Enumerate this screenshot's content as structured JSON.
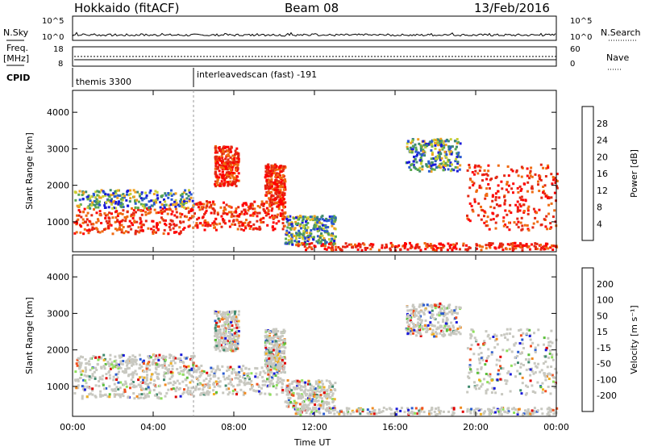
{
  "header": {
    "radar": "Hokkaido (fitACF)",
    "beam": "Beam 08",
    "date": "13/Feb/2016"
  },
  "status_panels": {
    "nsky_label": "N.Sky",
    "nsearch_label": "N.Search",
    "freq_label_1": "Freq.",
    "freq_label_2": "[MHz]",
    "nave_label": "Nave",
    "cpid_label": "CPID",
    "noise_ticks_left": [
      "10^5",
      "10^0"
    ],
    "noise_ticks_right": [
      "10^5",
      "10^0"
    ],
    "freq_ticks": [
      "18",
      "8"
    ],
    "nave_ticks": [
      "60",
      "0"
    ],
    "cpid_segments": [
      {
        "name": "themis 3300",
        "start_hour": 0,
        "end_hour": 6
      },
      {
        "name": "interleavedscan (fast) -191",
        "start_hour": 6,
        "end_hour": 24
      }
    ]
  },
  "chart_data": [
    {
      "type": "heatmap",
      "ylabel": "Slant Range [km]",
      "xlabel": "Time UT",
      "x_ticks": [
        "00:00",
        "04:00",
        "08:00",
        "12:00",
        "16:00",
        "20:00",
        "00:00"
      ],
      "xlim_hours": [
        0,
        24
      ],
      "y_ticks": [
        1000,
        2000,
        3000,
        4000
      ],
      "ylim": [
        180,
        4600
      ],
      "colorbar_label": "Power [dB]",
      "colorbar_ticks": [
        4,
        8,
        12,
        16,
        20,
        24,
        28
      ],
      "colorbar_colors": [
        "#1a1ad9",
        "#2a5bd0",
        "#3f8a6e",
        "#5aa84f",
        "#c8d034",
        "#f0a020",
        "#f06a10",
        "#e32814",
        "#ff0000"
      ]
    },
    {
      "type": "heatmap",
      "ylabel": "Slant Range [km]",
      "xlabel": "Time UT",
      "x_ticks": [
        "00:00",
        "04:00",
        "08:00",
        "12:00",
        "16:00",
        "20:00",
        "00:00"
      ],
      "xlim_hours": [
        0,
        24
      ],
      "y_ticks": [
        1000,
        2000,
        3000,
        4000
      ],
      "ylim": [
        180,
        4600
      ],
      "colorbar_label": "Velocity [m s⁻¹]",
      "colorbar_ticks": [
        "200",
        "100",
        "50",
        "15",
        "-15",
        "-50",
        "-100",
        "-200"
      ],
      "colorbar_colors": [
        "#1a1ad9",
        "#2a5bd0",
        "#3f8a6e",
        "#5bbf3a",
        "#8ee05a",
        "#c8c8c0",
        "#f0b020",
        "#f08a20",
        "#f05020",
        "#e00000"
      ]
    }
  ],
  "time_label": "Time UT"
}
